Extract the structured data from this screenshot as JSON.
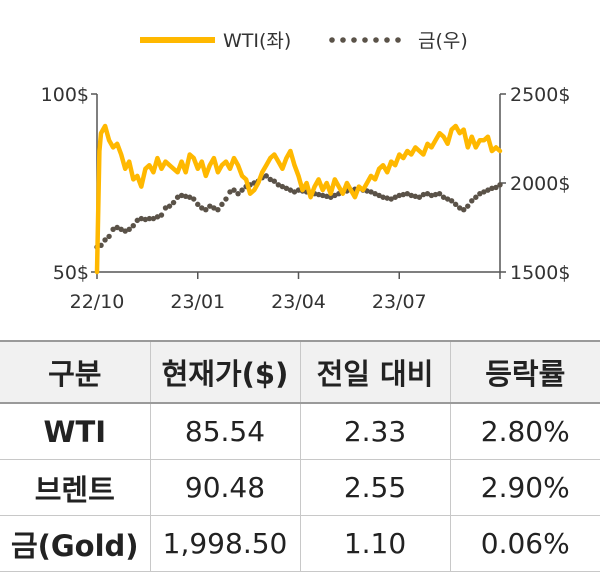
{
  "chart_data": {
    "type": "line",
    "legend": {
      "placement": "top",
      "entries": [
        "WTI(좌)",
        "금(우)"
      ]
    },
    "x_ticks": [
      "22/10",
      "23/01",
      "23/04",
      "23/07"
    ],
    "left_axis": {
      "ticks": [
        "100$",
        "50$"
      ],
      "range": [
        50,
        100
      ]
    },
    "right_axis": {
      "ticks": [
        "2500$",
        "2000$",
        "1500$"
      ],
      "range": [
        1500,
        2500
      ]
    },
    "grid": false,
    "x_range": [
      0,
      100
    ],
    "series": [
      {
        "name": "WTI(좌)",
        "axis": "left",
        "color": "#FFB800",
        "style": "solid",
        "x": [
          0,
          0.6,
          1,
          2,
          3,
          4,
          5,
          6,
          7,
          8,
          9,
          10,
          11,
          12,
          13,
          14,
          15,
          16,
          17,
          18,
          19,
          20,
          21,
          22,
          23,
          24,
          25,
          26,
          27,
          28,
          29,
          30,
          31,
          32,
          33,
          34,
          35,
          36,
          37,
          38,
          39,
          40,
          41,
          42,
          43,
          44,
          45,
          46,
          47,
          48,
          49,
          50,
          51,
          52,
          53,
          54,
          55,
          56,
          57,
          58,
          59,
          60,
          61,
          62,
          63,
          64,
          65,
          66,
          67,
          68,
          69,
          70,
          71,
          72,
          73,
          74,
          75,
          76,
          77,
          78,
          79,
          80,
          81,
          82,
          83,
          84,
          85,
          86,
          87,
          88,
          89,
          90,
          91,
          92,
          93,
          94,
          95,
          96,
          97,
          98,
          99,
          100
        ],
        "values": [
          50,
          84,
          89,
          91,
          87,
          85,
          86,
          83,
          79,
          81,
          76,
          77,
          74,
          79,
          80,
          78,
          82,
          79,
          81,
          80,
          79,
          78,
          81,
          78,
          83,
          82,
          79,
          81,
          77,
          80,
          82,
          78,
          80,
          81,
          79,
          82,
          80,
          77,
          76,
          72,
          73,
          75,
          78,
          80,
          82,
          83,
          81,
          79,
          82,
          84,
          80,
          77,
          73,
          75,
          71,
          74,
          76,
          73,
          75,
          72,
          76,
          74,
          72,
          75,
          73,
          71,
          74,
          73,
          75,
          77,
          76,
          79,
          80,
          78,
          81,
          80,
          83,
          82,
          84,
          83,
          85,
          84,
          83,
          86,
          85,
          87,
          89,
          88,
          86,
          90,
          91,
          89,
          90,
          85,
          88,
          85,
          87,
          87,
          88,
          84,
          85,
          84
        ]
      },
      {
        "name": "금(우)",
        "axis": "right",
        "color": "#5A5248",
        "style": "dotted",
        "x": [
          0,
          1,
          2,
          3,
          4,
          5,
          6,
          7,
          8,
          9,
          10,
          11,
          12,
          13,
          14,
          15,
          16,
          17,
          18,
          19,
          20,
          21,
          22,
          23,
          24,
          25,
          26,
          27,
          28,
          29,
          30,
          31,
          32,
          33,
          34,
          35,
          36,
          37,
          38,
          39,
          40,
          41,
          42,
          43,
          44,
          45,
          46,
          47,
          48,
          49,
          50,
          51,
          52,
          53,
          54,
          55,
          56,
          57,
          58,
          59,
          60,
          61,
          62,
          63,
          64,
          65,
          66,
          67,
          68,
          69,
          70,
          71,
          72,
          73,
          74,
          75,
          76,
          77,
          78,
          79,
          80,
          81,
          82,
          83,
          84,
          85,
          86,
          87,
          88,
          89,
          90,
          91,
          92,
          93,
          94,
          95,
          96,
          97,
          98,
          99,
          100
        ],
        "values": [
          1640,
          1650,
          1680,
          1700,
          1740,
          1750,
          1740,
          1730,
          1740,
          1760,
          1790,
          1800,
          1795,
          1800,
          1800,
          1810,
          1820,
          1860,
          1870,
          1890,
          1920,
          1930,
          1925,
          1920,
          1910,
          1880,
          1860,
          1850,
          1870,
          1860,
          1850,
          1880,
          1910,
          1950,
          1960,
          1940,
          1960,
          1980,
          1990,
          2000,
          2010,
          2030,
          2040,
          2020,
          2010,
          1990,
          1980,
          1970,
          1960,
          1950,
          1960,
          1955,
          1950,
          1945,
          1940,
          1935,
          1930,
          1925,
          1920,
          1930,
          1940,
          1950,
          1955,
          1960,
          1965,
          1970,
          1960,
          1955,
          1950,
          1940,
          1930,
          1920,
          1915,
          1910,
          1920,
          1930,
          1935,
          1940,
          1930,
          1925,
          1920,
          1935,
          1940,
          1930,
          1935,
          1940,
          1920,
          1910,
          1900,
          1880,
          1860,
          1850,
          1870,
          1900,
          1920,
          1940,
          1950,
          1960,
          1970,
          1975,
          1990
        ]
      }
    ]
  },
  "table": {
    "headers": [
      "구분",
      "현재가($)",
      "전일 대비",
      "등락률"
    ],
    "rows": [
      [
        "WTI",
        "85.54",
        "2.33",
        "2.80%"
      ],
      [
        "브렌트",
        "90.48",
        "2.55",
        "2.90%"
      ],
      [
        "금(Gold)",
        "1,998.50",
        "1.10",
        "0.06%"
      ]
    ]
  }
}
